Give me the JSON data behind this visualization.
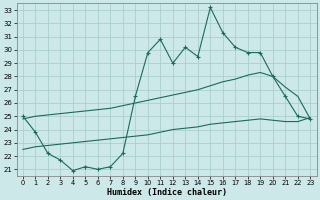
{
  "xlabel": "Humidex (Indice chaleur)",
  "bg_color": "#cce8e8",
  "grid_color": "#aacfcf",
  "line_color": "#1a6b5a",
  "x_ticks": [
    0,
    1,
    2,
    3,
    4,
    5,
    6,
    7,
    8,
    9,
    10,
    11,
    12,
    13,
    14,
    15,
    16,
    17,
    18,
    19,
    20,
    21,
    22,
    23
  ],
  "y_ticks": [
    21,
    22,
    23,
    24,
    25,
    26,
    27,
    28,
    29,
    30,
    31,
    32,
    33
  ],
  "xlim": [
    -0.5,
    23.5
  ],
  "ylim": [
    20.5,
    33.5
  ],
  "main_line_x": [
    0,
    1,
    2,
    3,
    4,
    5,
    6,
    7,
    8,
    9,
    10,
    11,
    12,
    13,
    14,
    15,
    16,
    17,
    18,
    19,
    20,
    21,
    22,
    23
  ],
  "main_line_y": [
    25.0,
    23.8,
    22.2,
    21.7,
    20.9,
    21.2,
    21.0,
    21.2,
    22.2,
    26.5,
    29.8,
    30.8,
    29.0,
    30.2,
    29.5,
    33.2,
    31.3,
    30.2,
    29.8,
    29.8,
    28.0,
    26.5,
    25.0,
    24.8
  ],
  "upper_line_x": [
    0,
    1,
    2,
    3,
    4,
    5,
    6,
    7,
    8,
    9,
    10,
    11,
    12,
    13,
    14,
    15,
    16,
    17,
    18,
    19,
    20,
    21,
    22,
    23
  ],
  "upper_line_y": [
    24.8,
    25.0,
    25.1,
    25.2,
    25.3,
    25.4,
    25.5,
    25.6,
    25.8,
    26.0,
    26.2,
    26.4,
    26.6,
    26.8,
    27.0,
    27.3,
    27.6,
    27.8,
    28.1,
    28.3,
    28.0,
    27.2,
    26.5,
    24.8
  ],
  "lower_line_x": [
    0,
    1,
    2,
    3,
    4,
    5,
    6,
    7,
    8,
    9,
    10,
    11,
    12,
    13,
    14,
    15,
    16,
    17,
    18,
    19,
    20,
    21,
    22,
    23
  ],
  "lower_line_y": [
    22.5,
    22.7,
    22.8,
    22.9,
    23.0,
    23.1,
    23.2,
    23.3,
    23.4,
    23.5,
    23.6,
    23.8,
    24.0,
    24.1,
    24.2,
    24.4,
    24.5,
    24.6,
    24.7,
    24.8,
    24.7,
    24.6,
    24.6,
    24.9
  ]
}
